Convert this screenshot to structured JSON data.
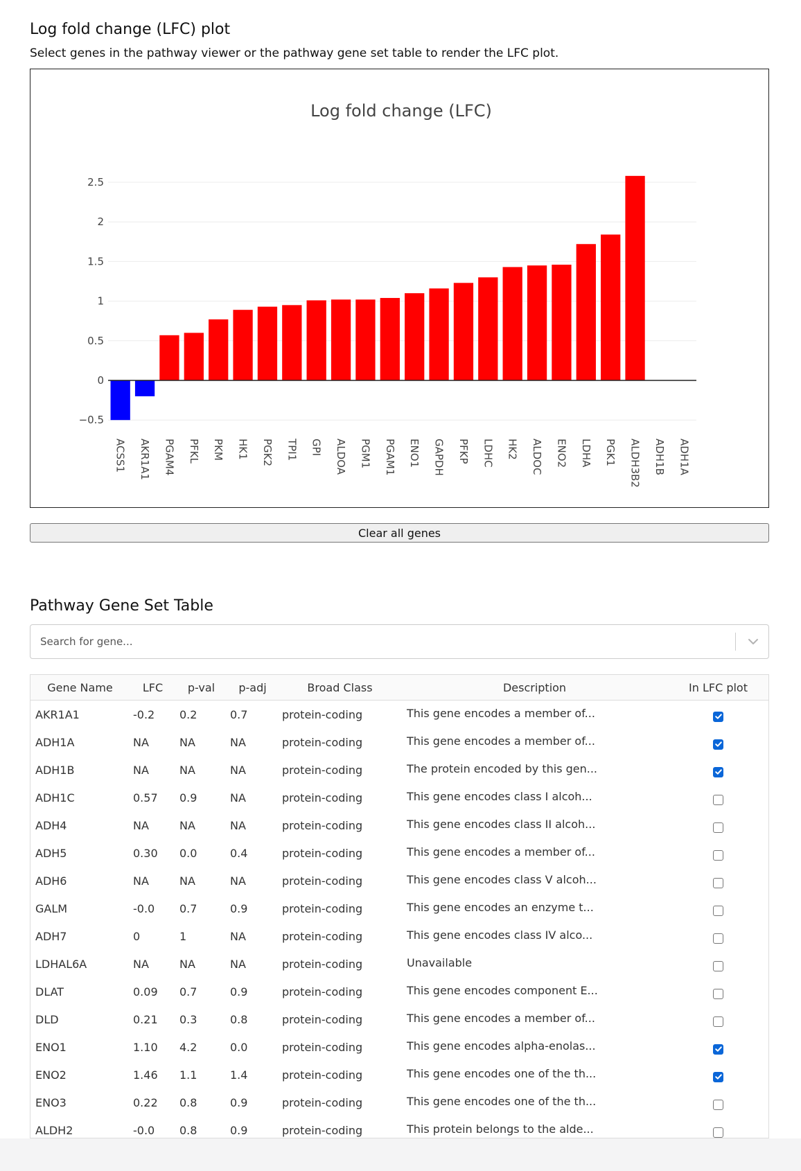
{
  "lfc_section": {
    "title": "Log fold change (LFC) plot",
    "subtitle": "Select genes in the pathway viewer or the pathway gene set table to render the LFC plot.",
    "clear_button": "Clear all genes"
  },
  "chart_data": {
    "type": "bar",
    "title": "Log fold change (LFC)",
    "xlabel": "",
    "ylabel": "",
    "categories": [
      "ACSS1",
      "AKR1A1",
      "PGAM4",
      "PFKL",
      "PKM",
      "HK1",
      "PGK2",
      "TPI1",
      "GPI",
      "ALDOA",
      "PGM1",
      "PGAM1",
      "ENO1",
      "GAPDH",
      "PFKP",
      "LDHC",
      "HK2",
      "ALDOC",
      "ENO2",
      "LDHA",
      "PGK1",
      "ALDH3B2",
      "ADH1B",
      "ADH1A"
    ],
    "values": [
      -0.5,
      -0.2,
      0.57,
      0.6,
      0.77,
      0.89,
      0.93,
      0.95,
      1.01,
      1.02,
      1.02,
      1.04,
      1.1,
      1.16,
      1.23,
      1.3,
      1.43,
      1.45,
      1.46,
      1.72,
      1.84,
      2.58,
      null,
      null
    ],
    "ylim": [
      -0.55,
      2.65
    ],
    "yticks": [
      -0.5,
      0,
      0.5,
      1,
      1.5,
      2,
      2.5
    ],
    "ytick_labels": [
      "−0.5",
      "0",
      "0.5",
      "1",
      "1.5",
      "2",
      "2.5"
    ],
    "grid": true,
    "colors": {
      "positive": "#ff0000",
      "negative": "#0000ff"
    }
  },
  "table_section": {
    "title": "Pathway Gene Set Table",
    "search_placeholder": "Search for gene...",
    "columns": [
      "Gene Name",
      "LFC",
      "p-val",
      "p-adj",
      "Broad Class",
      "Description",
      "In LFC plot"
    ],
    "rows": [
      {
        "gene": "AKR1A1",
        "lfc": "-0.2",
        "pval": "0.2",
        "padj": "0.7",
        "broad": "protein-coding",
        "desc": "This gene encodes a member of...",
        "checked": true
      },
      {
        "gene": "ADH1A",
        "lfc": "NA",
        "pval": "NA",
        "padj": "NA",
        "broad": "protein-coding",
        "desc": "This gene encodes a member of...",
        "checked": true
      },
      {
        "gene": "ADH1B",
        "lfc": "NA",
        "pval": "NA",
        "padj": "NA",
        "broad": "protein-coding",
        "desc": "The protein encoded by this gen...",
        "checked": true
      },
      {
        "gene": "ADH1C",
        "lfc": "0.57",
        "pval": "0.9",
        "padj": "NA",
        "broad": "protein-coding",
        "desc": "This gene encodes class I alcoh...",
        "checked": false
      },
      {
        "gene": "ADH4",
        "lfc": "NA",
        "pval": "NA",
        "padj": "NA",
        "broad": "protein-coding",
        "desc": "This gene encodes class II alcoh...",
        "checked": false
      },
      {
        "gene": "ADH5",
        "lfc": "0.30",
        "pval": "0.0",
        "padj": "0.4",
        "broad": "protein-coding",
        "desc": "This gene encodes a member of...",
        "checked": false
      },
      {
        "gene": "ADH6",
        "lfc": "NA",
        "pval": "NA",
        "padj": "NA",
        "broad": "protein-coding",
        "desc": "This gene encodes class V alcoh...",
        "checked": false
      },
      {
        "gene": "GALM",
        "lfc": "-0.0",
        "pval": "0.7",
        "padj": "0.9",
        "broad": "protein-coding",
        "desc": "This gene encodes an enzyme t...",
        "checked": false
      },
      {
        "gene": "ADH7",
        "lfc": "0",
        "pval": "1",
        "padj": "NA",
        "broad": "protein-coding",
        "desc": "This gene encodes class IV alco...",
        "checked": false
      },
      {
        "gene": "LDHAL6A",
        "lfc": "NA",
        "pval": "NA",
        "padj": "NA",
        "broad": "protein-coding",
        "desc": "Unavailable",
        "checked": false
      },
      {
        "gene": "DLAT",
        "lfc": "0.09",
        "pval": "0.7",
        "padj": "0.9",
        "broad": "protein-coding",
        "desc": "This gene encodes component E...",
        "checked": false
      },
      {
        "gene": "DLD",
        "lfc": "0.21",
        "pval": "0.3",
        "padj": "0.8",
        "broad": "protein-coding",
        "desc": "This gene encodes a member of...",
        "checked": false
      },
      {
        "gene": "ENO1",
        "lfc": "1.10",
        "pval": "4.2",
        "padj": "0.0",
        "broad": "protein-coding",
        "desc": "This gene encodes alpha-enolas...",
        "checked": true
      },
      {
        "gene": "ENO2",
        "lfc": "1.46",
        "pval": "1.1",
        "padj": "1.4",
        "broad": "protein-coding",
        "desc": "This gene encodes one of the th...",
        "checked": true
      },
      {
        "gene": "ENO3",
        "lfc": "0.22",
        "pval": "0.8",
        "padj": "0.9",
        "broad": "protein-coding",
        "desc": "This gene encodes one of the th...",
        "checked": false
      },
      {
        "gene": "ALDH2",
        "lfc": "-0.0",
        "pval": "0.8",
        "padj": "0.9",
        "broad": "protein-coding",
        "desc": "This protein belongs to the alde...",
        "checked": false
      }
    ]
  }
}
